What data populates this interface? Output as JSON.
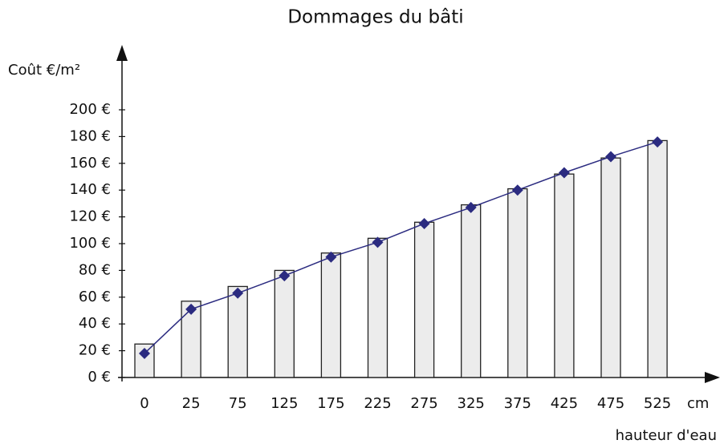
{
  "chart_data": {
    "type": "bar",
    "title": "Dommages du bâti",
    "y_axis_label": "Coût €/m²",
    "x_axis_label": "hauteur d'eau",
    "x_unit": "cm",
    "categories": [
      "0",
      "25",
      "75",
      "125",
      "175",
      "225",
      "275",
      "325",
      "375",
      "425",
      "475",
      "525"
    ],
    "series": [
      {
        "type": "bar",
        "color": "#ececec",
        "values": [
          25,
          57,
          68,
          80,
          93,
          104,
          116,
          129,
          141,
          152,
          164,
          177
        ]
      },
      {
        "type": "line",
        "color": "#2b2b80",
        "values": [
          18,
          51,
          63,
          76,
          90,
          101,
          115,
          127,
          140,
          153,
          165,
          176
        ]
      }
    ],
    "ylim": [
      0,
      200
    ],
    "yticks": [
      {
        "value": 0,
        "label": "0 €"
      },
      {
        "value": 20,
        "label": "20 €"
      },
      {
        "value": 40,
        "label": "40 €"
      },
      {
        "value": 60,
        "label": "60 €"
      },
      {
        "value": 80,
        "label": "80 €"
      },
      {
        "value": 100,
        "label": "100 €"
      },
      {
        "value": 120,
        "label": "120 €"
      },
      {
        "value": 140,
        "label": "140 €"
      },
      {
        "value": 160,
        "label": "160 €"
      },
      {
        "value": 180,
        "label": "180 €"
      },
      {
        "value": 200,
        "label": "200 €"
      }
    ],
    "grid": false
  }
}
